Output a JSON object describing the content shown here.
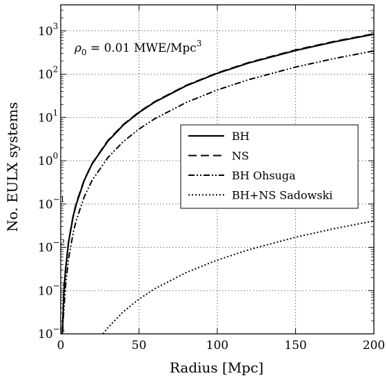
{
  "chart_data": {
    "type": "line",
    "xlabel": "Radius [Mpc]",
    "ylabel": "No. EULX systems",
    "xlim": [
      0,
      200
    ],
    "ylim": [
      0.0001,
      4000
    ],
    "yscale": "log",
    "grid": true,
    "legend_position": "center-right",
    "annotation": {
      "prefix": "ρ",
      "subscript": "0",
      "middle": " = 0.01  MWE/Mpc",
      "superscript": "3"
    },
    "x_ticks": [
      0,
      50,
      100,
      150,
      200
    ],
    "y_ticks": [
      {
        "value": 0.0001,
        "base": "10",
        "exp": "−4"
      },
      {
        "value": 0.001,
        "base": "10",
        "exp": "−3"
      },
      {
        "value": 0.01,
        "base": "10",
        "exp": "−2"
      },
      {
        "value": 0.1,
        "base": "10",
        "exp": "−1"
      },
      {
        "value": 1,
        "base": "10",
        "exp": "0"
      },
      {
        "value": 10,
        "base": "10",
        "exp": "1"
      },
      {
        "value": 100,
        "base": "10",
        "exp": "2"
      },
      {
        "value": 1000,
        "base": "10",
        "exp": "3"
      }
    ],
    "series": [
      {
        "name": "BH",
        "style": "solid",
        "color": "#000000",
        "x": [
          0.5,
          1,
          2,
          3,
          5,
          8,
          10,
          15,
          20,
          30,
          40,
          50,
          60,
          80,
          100,
          120,
          150,
          175,
          200
        ],
        "y": [
          0.0001,
          0.0001,
          0.00084,
          0.0028,
          0.013,
          0.053,
          0.1,
          0.35,
          0.84,
          2.8,
          6.7,
          13,
          22.6,
          53.6,
          104.7,
          181,
          353,
          561,
          838
        ]
      },
      {
        "name": "NS",
        "style": "dashed",
        "color": "#000000",
        "x": [
          0.5,
          1,
          2,
          3,
          5,
          8,
          10,
          15,
          20,
          30,
          40,
          50,
          60,
          80,
          100,
          120,
          150,
          175,
          200
        ],
        "y": [
          0.0001,
          0.0001,
          0.00086,
          0.0029,
          0.0134,
          0.055,
          0.107,
          0.36,
          0.86,
          2.9,
          6.9,
          13.4,
          23.2,
          55,
          107,
          186,
          363,
          576,
          860
        ]
      },
      {
        "name": "BH Ohsuga",
        "style": "dashdotdot",
        "color": "#000000",
        "x": [
          1,
          2,
          3,
          5,
          8,
          10,
          15,
          20,
          30,
          40,
          50,
          60,
          80,
          100,
          120,
          150,
          175,
          200
        ],
        "y": [
          0.0001,
          0.00035,
          0.0012,
          0.0054,
          0.022,
          0.043,
          0.146,
          0.35,
          1.17,
          2.77,
          5.4,
          9.3,
          22.1,
          43.2,
          74.6,
          146,
          231,
          345
        ]
      },
      {
        "name": "BH+NS Sadowski",
        "style": "dotted",
        "color": "#000000",
        "x": [
          27,
          30,
          40,
          50,
          60,
          80,
          100,
          120,
          150,
          175,
          200
        ],
        "y": [
          0.0001,
          0.000137,
          0.000325,
          0.000634,
          0.0011,
          0.0026,
          0.00507,
          0.00876,
          0.0171,
          0.0272,
          0.0406
        ]
      }
    ]
  }
}
